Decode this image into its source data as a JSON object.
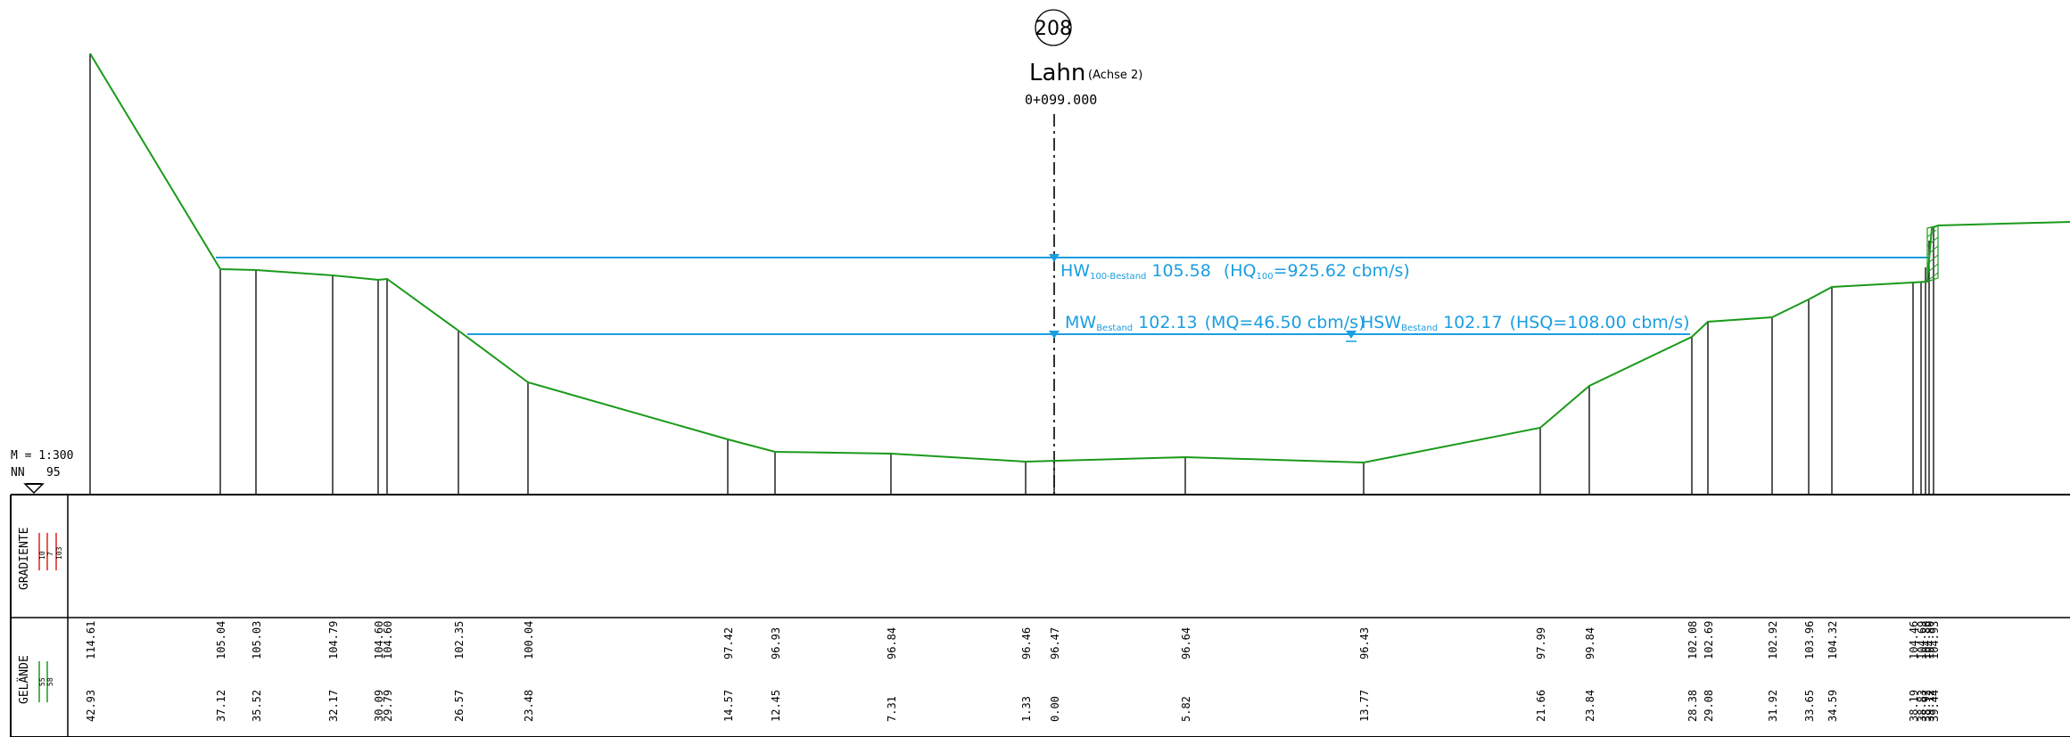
{
  "header": {
    "station_number": "208",
    "river": "Lahn",
    "axis": "(Achse 2)",
    "chainage": "0+099.000"
  },
  "scale": {
    "ratio": "M = 1:300",
    "datum_label": "NN",
    "datum_value": "95"
  },
  "water_levels": [
    {
      "id": "hw",
      "label_main": "HW",
      "label_sub": "100-Bestand",
      "value": "105.58",
      "discharge_pre": "(HQ",
      "discharge_sub": "100",
      "discharge_post": "=925.62 cbm/s)",
      "level": 105.58
    },
    {
      "id": "mw",
      "label_main": "MW",
      "label_sub": "Bestand",
      "value": "102.13",
      "discharge_pre": "(MQ=46.50 cbm/s)",
      "discharge_sub": "",
      "discharge_post": "",
      "level": 102.13
    },
    {
      "id": "hsw",
      "label_main": "HSW",
      "label_sub": "Bestand",
      "value": "102.17",
      "discharge_pre": "(HSQ=108.00 cbm/s)",
      "discharge_sub": "",
      "discharge_post": "",
      "level": 102.17
    }
  ],
  "bands": {
    "gradiente": {
      "label": "GRADIENTE",
      "legend": [
        "10",
        "7",
        "103"
      ]
    },
    "gelaende": {
      "label": "GELÄNDE",
      "legend": [
        "55",
        "58"
      ]
    }
  },
  "profile": {
    "elevations": [
      "114.61",
      "105.04",
      "105.03",
      "104.79",
      "104.60",
      "104.60",
      "102.35",
      "100.04",
      "97.42",
      "96.93",
      "96.84",
      "96.46",
      "96.47",
      "96.64",
      "96.43",
      "97.99",
      "99.84",
      "102.08",
      "102.69",
      "102.92",
      "103.96",
      "104.32",
      "104.46",
      "104.69",
      "104.80",
      "104.80",
      "104.93"
    ],
    "distances": [
      "42.93",
      "37.12",
      "35.52",
      "32.17",
      "30.09",
      "29.79",
      "26.57",
      "23.48",
      "14.57",
      "12.45",
      "7.31",
      "1.33",
      "0.00",
      "5.82",
      "13.77",
      "21.66",
      "23.84",
      "28.38",
      "29.08",
      "31.92",
      "33.65",
      "34.59",
      "38.19",
      "38.83",
      "38.92",
      "39.12",
      "39.44"
    ]
  },
  "colors": {
    "terrain": "#1a9a1a",
    "water": "#1a9ee0",
    "ink": "#000000",
    "gradient_red": "#e02020"
  }
}
